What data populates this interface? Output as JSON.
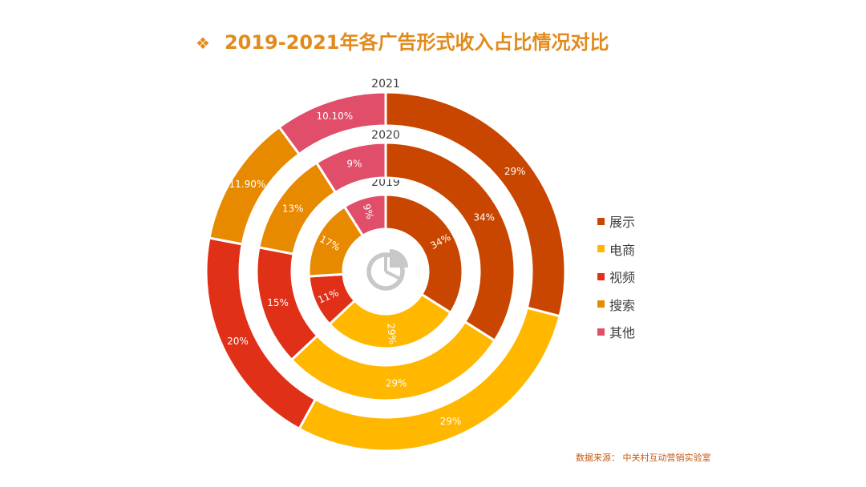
{
  "title": "2019-2021年各广告形式收入占比情况对比",
  "source": "数据来源： 中关村互动营销实验室",
  "chart_data": {
    "type": "pie",
    "variant": "multi-ring-donut",
    "categories": [
      "展示",
      "电商",
      "视频",
      "搜索",
      "其他"
    ],
    "colors": [
      "#C84600",
      "#FFB700",
      "#E03018",
      "#E88A00",
      "#E04E6A"
    ],
    "series": [
      {
        "name": "2019",
        "values": [
          34,
          29,
          11,
          17,
          9
        ],
        "labels": [
          "34%",
          "29%",
          "11%",
          "17%",
          "9%"
        ]
      },
      {
        "name": "2020",
        "values": [
          34,
          29,
          15,
          13,
          9
        ],
        "labels": [
          "34%",
          "29%",
          "15%",
          "13%",
          "9%"
        ]
      },
      {
        "name": "2021",
        "values": [
          29,
          29,
          20,
          11.9,
          10.1
        ],
        "labels": [
          "29%",
          "29%",
          "20%",
          "11.90%",
          "10.10%"
        ]
      }
    ],
    "legend_position": "right"
  }
}
